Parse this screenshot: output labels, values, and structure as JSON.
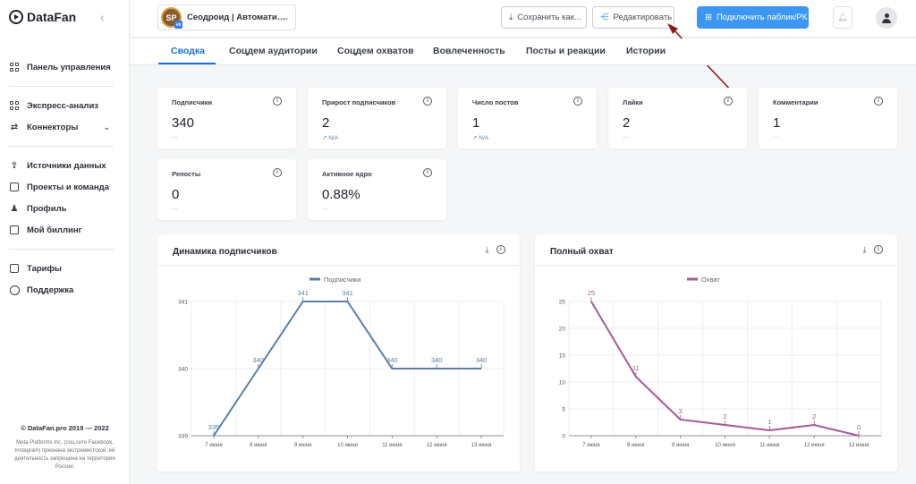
{
  "app": {
    "name": "DataFan"
  },
  "sidebar": {
    "items": [
      {
        "label": "Панель управления",
        "icon": "dashboard-icon"
      },
      {
        "label": "Экспресс-анализ",
        "icon": "express-analysis-icon"
      },
      {
        "label": "Коннекторы",
        "icon": "connectors-icon"
      },
      {
        "label": "Источники данных",
        "icon": "upload-icon"
      },
      {
        "label": "Проекты и команда",
        "icon": "projects-icon"
      },
      {
        "label": "Профиль",
        "icon": "user-icon"
      },
      {
        "label": "Мой биллинг",
        "icon": "billing-icon"
      },
      {
        "label": "Тарифы",
        "icon": "tariffs-icon"
      },
      {
        "label": "Поддержка",
        "icon": "help-icon"
      }
    ],
    "copyright": "© DataFan.pro 2019 — 2022",
    "disclaimer": "Meta Platforms Inc. (соц.сети Facebook, Instagram) признана экстремистской, её деятельность запрещена на территории России."
  },
  "topbar": {
    "account_initials": "SP",
    "account_name": "Сеодроид | Автомати…",
    "save_label": "Сохранить как...",
    "edit_label": "Редактировать",
    "connect_label": "Подключить паблик/РК"
  },
  "tabs": [
    "Сводка",
    "Соцдем аудитории",
    "Соцдем охватов",
    "Вовлеченность",
    "Посты и реакции",
    "Истории"
  ],
  "kpis": [
    {
      "label": "Подписчики",
      "value": "340",
      "sub": ""
    },
    {
      "label": "Прирост подписчиков",
      "value": "2",
      "sub": "↗ N/A"
    },
    {
      "label": "Число постов",
      "value": "1",
      "sub": "↗ N/A"
    },
    {
      "label": "Лайки",
      "value": "2",
      "sub": ""
    },
    {
      "label": "Комментарии",
      "value": "1",
      "sub": ""
    },
    {
      "label": "Репосты",
      "value": "0",
      "sub": ""
    },
    {
      "label": "Активное ядро",
      "value": "0.88%",
      "sub": ""
    }
  ],
  "chart_data": [
    {
      "type": "line",
      "title": "Динамика подписчиков",
      "categories": [
        "7 июня",
        "8 июня",
        "9 июня",
        "10 июня",
        "11 июня",
        "12 июня",
        "13 июня"
      ],
      "series": [
        {
          "name": "Подписчики",
          "values": [
            339,
            340,
            341,
            341,
            340,
            340,
            340
          ]
        }
      ],
      "yticks": [
        339,
        340,
        341
      ],
      "ylim": [
        339,
        341
      ],
      "color": "#5b7fa8",
      "legend": "top-center",
      "grid": true
    },
    {
      "type": "line",
      "title": "Полный охват",
      "categories": [
        "7 июня",
        "8 июня",
        "9 июня",
        "10 июня",
        "11 июня",
        "12 июня",
        "13 июня"
      ],
      "series": [
        {
          "name": "Охват",
          "values": [
            25,
            11,
            3,
            2,
            1,
            2,
            0
          ]
        }
      ],
      "yticks": [
        0,
        5,
        10,
        15,
        20,
        25
      ],
      "ylim": [
        0,
        25
      ],
      "color": "#a65b93",
      "legend": "top-center",
      "grid": true
    }
  ]
}
